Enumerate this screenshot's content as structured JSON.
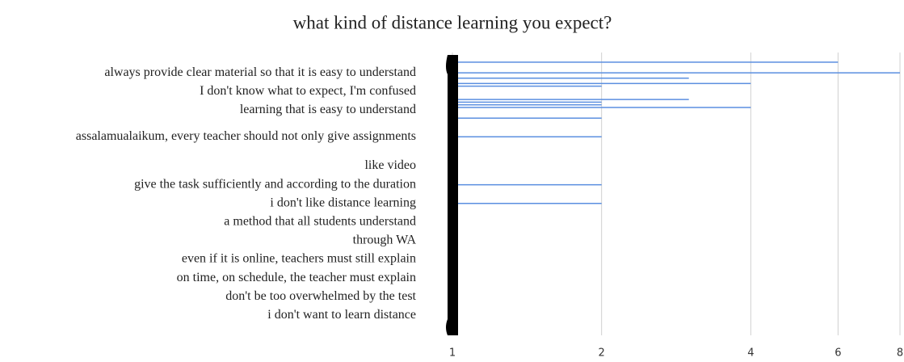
{
  "chart_data": {
    "type": "bar",
    "orientation": "horizontal",
    "title": "what kind of distance learning you expect?",
    "categories": [
      null,
      null,
      null,
      null,
      null,
      "always provide clear material so that it is easy to understand",
      null,
      null,
      null,
      null,
      null,
      null,
      "I don't know what to expect, I'm confused",
      null,
      null,
      null,
      null,
      null,
      null,
      "learning that is easy to understand",
      null,
      null,
      null,
      null,
      null,
      null,
      null,
      null,
      null,
      "assalamualaikum, every teacher should not only give assignments",
      null,
      null,
      null,
      null,
      null,
      null,
      null,
      null,
      null,
      null,
      "like video",
      null,
      null,
      null,
      null,
      null,
      null,
      "give the task sufficiently and according to the duration",
      null,
      null,
      null,
      null,
      null,
      null,
      "i don't like distance learning",
      null,
      null,
      null,
      null,
      null,
      null,
      "a method that all students understand",
      null,
      null,
      null,
      null,
      null,
      null,
      "through WA",
      null,
      null,
      null,
      null,
      null,
      null,
      "even if it is online, teachers must still explain",
      null,
      null,
      null,
      null,
      null,
      null,
      "on time, on schedule, the teacher must explain",
      null,
      null,
      null,
      null,
      null,
      null,
      "don't be too overwhelmed by the test",
      null,
      null,
      null,
      null,
      null,
      null,
      "i don't want to learn distance",
      null,
      null,
      null,
      null,
      null,
      null,
      null
    ],
    "values": [
      1,
      6,
      1,
      1,
      1,
      8,
      1,
      3,
      1,
      4,
      2,
      1,
      1,
      1,
      1,
      3,
      2,
      2,
      4,
      1,
      1,
      1,
      2,
      1,
      1,
      1,
      1,
      1,
      1,
      2,
      1,
      1,
      1,
      1,
      1,
      1,
      1,
      1,
      1,
      1,
      1,
      1,
      1,
      1,
      1,
      1,
      1,
      2,
      1,
      1,
      1,
      1,
      1,
      1,
      2,
      1,
      1,
      1,
      1,
      1,
      1,
      1,
      1,
      1,
      1,
      1,
      1,
      1,
      1,
      1,
      1,
      1,
      1,
      1,
      1,
      1,
      1,
      1,
      1,
      1,
      1,
      1,
      1,
      1,
      1,
      1,
      1,
      1,
      1,
      1,
      1,
      1,
      1,
      1,
      1,
      1,
      1,
      1,
      1,
      1,
      1,
      1,
      1,
      1
    ],
    "color": "#5b8fe0",
    "xlim": [
      1,
      8
    ],
    "xticks": [
      1,
      2,
      4,
      6,
      8
    ],
    "xscale": "log",
    "grid": true
  }
}
